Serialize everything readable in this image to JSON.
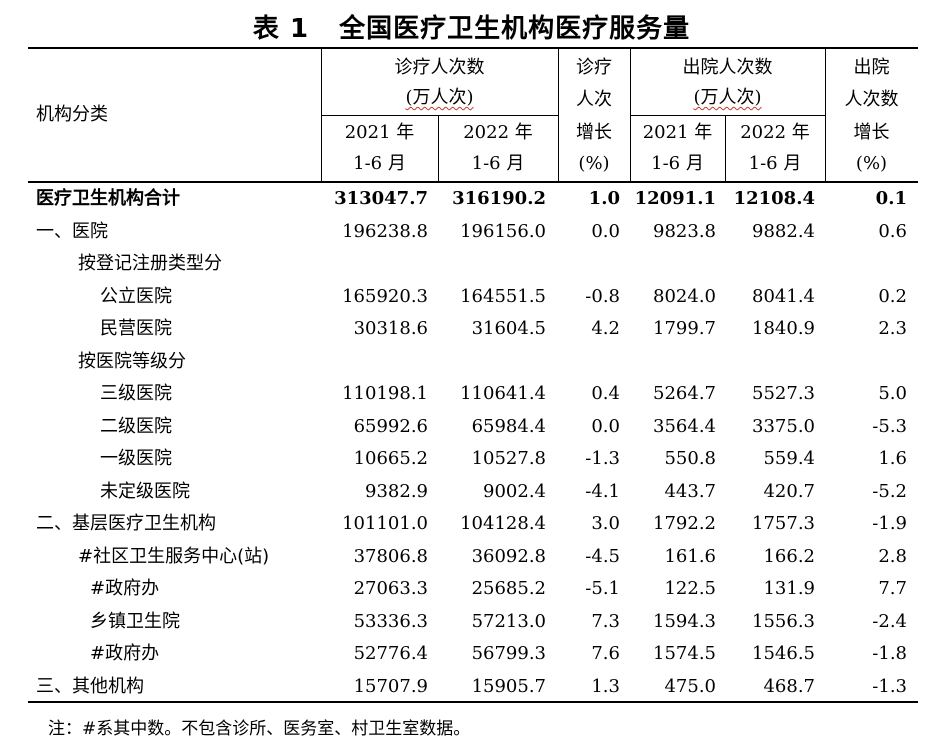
{
  "title": {
    "number": "表 1",
    "text": "全国医疗卫生机构医疗服务量"
  },
  "header": {
    "col0": "机构分类",
    "visits_l1": "诊疗人次数",
    "visits_l2": "(万人次)",
    "visits_y1_l1": "2021 年",
    "visits_y1_l2": "1-6 月",
    "visits_y2_l1": "2022 年",
    "visits_y2_l2": "1-6 月",
    "vgrowth_l1": "诊疗",
    "vgrowth_l2": "人次",
    "vgrowth_l3": "增长",
    "vgrowth_l4": "(%)",
    "disch_l1": "出院人次数",
    "disch_l2": "(万人次)",
    "disch_y1_l1": "2021 年",
    "disch_y1_l2": "1-6 月",
    "disch_y2_l1": "2022 年",
    "disch_y2_l2": "1-6 月",
    "dgrowth_l1": "出院",
    "dgrowth_l2": "人次数",
    "dgrowth_l3": "增长",
    "dgrowth_l4": "(%)"
  },
  "rows": [
    {
      "name": "医疗卫生机构合计",
      "v1": "313047.7",
      "v2": "316190.2",
      "vg": "1.0",
      "d1": "12091.1",
      "d2": "12108.4",
      "dg": "0.1"
    },
    {
      "name": "一、医院",
      "v1": "196238.8",
      "v2": "196156.0",
      "vg": "0.0",
      "d1": "9823.8",
      "d2": "9882.4",
      "dg": "0.6"
    },
    {
      "name": "按登记注册类型分",
      "v1": "",
      "v2": "",
      "vg": "",
      "d1": "",
      "d2": "",
      "dg": ""
    },
    {
      "name": "公立医院",
      "v1": "165920.3",
      "v2": "164551.5",
      "vg": "-0.8",
      "d1": "8024.0",
      "d2": "8041.4",
      "dg": "0.2"
    },
    {
      "name": "民营医院",
      "v1": "30318.6",
      "v2": "31604.5",
      "vg": "4.2",
      "d1": "1799.7",
      "d2": "1840.9",
      "dg": "2.3"
    },
    {
      "name": "按医院等级分",
      "v1": "",
      "v2": "",
      "vg": "",
      "d1": "",
      "d2": "",
      "dg": ""
    },
    {
      "name": "三级医院",
      "v1": "110198.1",
      "v2": "110641.4",
      "vg": "0.4",
      "d1": "5264.7",
      "d2": "5527.3",
      "dg": "5.0"
    },
    {
      "name": "二级医院",
      "v1": "65992.6",
      "v2": "65984.4",
      "vg": "0.0",
      "d1": "3564.4",
      "d2": "3375.0",
      "dg": "-5.3"
    },
    {
      "name": "一级医院",
      "v1": "10665.2",
      "v2": "10527.8",
      "vg": "-1.3",
      "d1": "550.8",
      "d2": "559.4",
      "dg": "1.6"
    },
    {
      "name": "未定级医院",
      "v1": "9382.9",
      "v2": "9002.4",
      "vg": "-4.1",
      "d1": "443.7",
      "d2": "420.7",
      "dg": "-5.2"
    },
    {
      "name": "二、基层医疗卫生机构",
      "v1": "101101.0",
      "v2": "104128.4",
      "vg": "3.0",
      "d1": "1792.2",
      "d2": "1757.3",
      "dg": "-1.9"
    },
    {
      "name": "#社区卫生服务中心(站)",
      "v1": "37806.8",
      "v2": "36092.8",
      "vg": "-4.5",
      "d1": "161.6",
      "d2": "166.2",
      "dg": "2.8"
    },
    {
      "name": "#政府办",
      "v1": "27063.3",
      "v2": "25685.2",
      "vg": "-5.1",
      "d1": "122.5",
      "d2": "131.9",
      "dg": "7.7"
    },
    {
      "name": "乡镇卫生院",
      "v1": "53336.3",
      "v2": "57213.0",
      "vg": "7.3",
      "d1": "1594.3",
      "d2": "1556.3",
      "dg": "-2.4"
    },
    {
      "name": "#政府办",
      "v1": "52776.4",
      "v2": "56799.3",
      "vg": "7.6",
      "d1": "1574.5",
      "d2": "1546.5",
      "dg": "-1.8"
    },
    {
      "name": "三、其他机构",
      "v1": "15707.9",
      "v2": "15905.7",
      "vg": "1.3",
      "d1": "475.0",
      "d2": "468.7",
      "dg": "-1.3"
    }
  ],
  "note": "注：#系其中数。不包含诊所、医务室、村卫生室数据。"
}
